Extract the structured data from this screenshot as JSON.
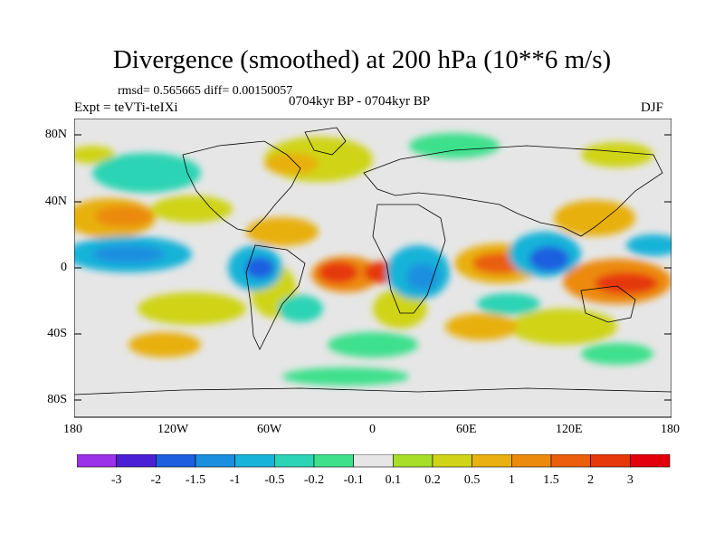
{
  "title": "Divergence (smoothed) at 200 hPa (10**6 m/s)",
  "stats": "rmsd= 0.565665 diff= 0.00150057",
  "experiment": "Expt = teVTi-teIXi",
  "period": "0704kyr BP - 0704kyr BP",
  "season": "DJF",
  "lat_ticks": [
    "80N",
    "40N",
    "0",
    "40S",
    "80S"
  ],
  "lon_ticks": [
    "180",
    "120W",
    "60W",
    "0",
    "60E",
    "120E",
    "180"
  ],
  "colorbar": {
    "labels": [
      "-3",
      "-2",
      "-1.5",
      "-1",
      "-0.5",
      "-0.2",
      "-0.1",
      "0.1",
      "0.2",
      "0.5",
      "1",
      "1.5",
      "2",
      "3"
    ],
    "colors": [
      "#9b31e8",
      "#4b1fd6",
      "#1e5fe0",
      "#1a8fe0",
      "#17b3d8",
      "#2bd4b4",
      "#3ee08c",
      "#e6e6e6",
      "#a6de28",
      "#cfd418",
      "#e8b010",
      "#ec8a0e",
      "#ea5e0c",
      "#e6380a",
      "#e3000b"
    ]
  },
  "colors": {
    "land_outline": "#000000",
    "ocean_fill": "#e6e6e6"
  }
}
